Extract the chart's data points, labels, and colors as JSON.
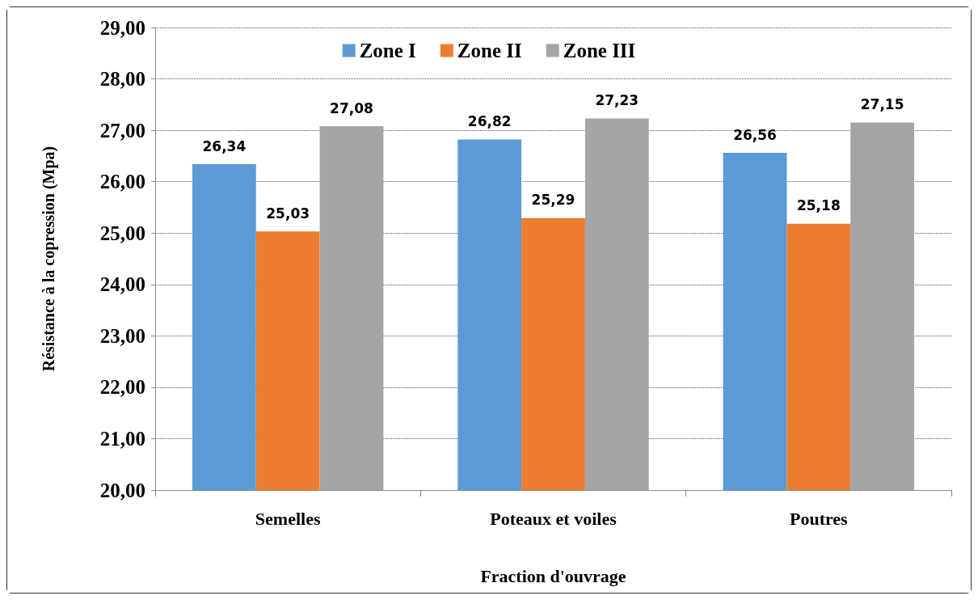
{
  "chart_data": {
    "type": "bar",
    "xlabel": "Fraction d'ouvrage",
    "ylabel": "Résistance à la copression (Mpa)",
    "categories": [
      "Semelles",
      "Poteaux et voiles",
      "Poutres"
    ],
    "series": [
      {
        "name": "Zone I",
        "color": "#5b9bd5",
        "values": [
          26.34,
          26.82,
          26.56
        ],
        "value_labels": [
          "26,34",
          "26,82",
          "26,56"
        ]
      },
      {
        "name": "Zone II",
        "color": "#ed7d31",
        "values": [
          25.03,
          25.29,
          25.18
        ],
        "value_labels": [
          "25,03",
          "25,29",
          "25,18"
        ]
      },
      {
        "name": "Zone III",
        "color": "#a5a5a5",
        "values": [
          27.08,
          27.23,
          27.15
        ],
        "value_labels": [
          "27,08",
          "27,23",
          "27,15"
        ]
      }
    ],
    "ylim": [
      20,
      29
    ],
    "yticks": [
      {
        "value": 20,
        "label": "20,00"
      },
      {
        "value": 21,
        "label": "21,00"
      },
      {
        "value": 22,
        "label": "22,00"
      },
      {
        "value": 23,
        "label": "23,00"
      },
      {
        "value": 24,
        "label": "24,00"
      },
      {
        "value": 25,
        "label": "25,00"
      },
      {
        "value": 26,
        "label": "26,00"
      },
      {
        "value": 27,
        "label": "27,00"
      },
      {
        "value": 28,
        "label": "28,00"
      },
      {
        "value": 29,
        "label": "29,00"
      }
    ],
    "grid": "y",
    "legend": "top"
  }
}
